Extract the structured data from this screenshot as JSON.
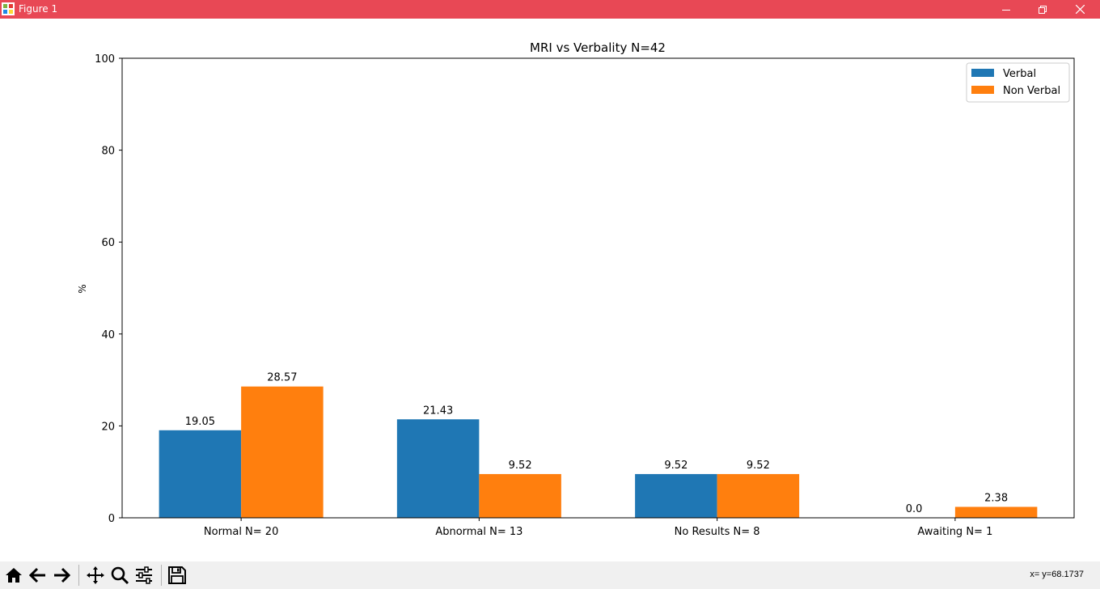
{
  "window": {
    "title": "Figure 1",
    "accent": "#e84855"
  },
  "toolbar": {
    "buttons": [
      "home-icon",
      "back-arrow-icon",
      "forward-arrow-icon",
      "pan-icon",
      "zoom-icon",
      "configure-subplots-icon",
      "save-icon"
    ],
    "coord_readout": "x= y=68.1737"
  },
  "chart_data": {
    "type": "bar",
    "title": "MRI vs Verbality N=42",
    "xlabel": "",
    "ylabel": "%",
    "ylim": [
      0,
      100
    ],
    "yticks": [
      "0",
      "20",
      "40",
      "60",
      "80",
      "100"
    ],
    "categories": [
      "Normal N= 20",
      "Abnormal N= 13",
      "No Results N= 8",
      "Awaiting N= 1"
    ],
    "series": [
      {
        "name": "Verbal",
        "color": "#1f77b4",
        "values": [
          19.05,
          21.43,
          9.52,
          0.0
        ],
        "labels": [
          "19.05",
          "21.43",
          "9.52",
          "0.0"
        ]
      },
      {
        "name": "Non Verbal",
        "color": "#ff7f0e",
        "values": [
          28.57,
          9.52,
          9.52,
          2.38
        ],
        "labels": [
          "28.57",
          "9.52",
          "9.52",
          "2.38"
        ]
      }
    ],
    "legend": "top-right",
    "grid": false
  }
}
